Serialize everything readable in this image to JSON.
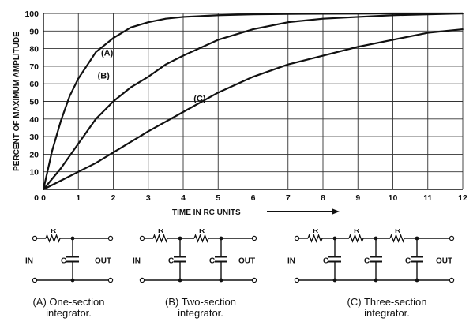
{
  "chart_data": {
    "type": "line",
    "xlabel": "TIME IN RC UNITS",
    "ylabel": "PERCENT OF MAXIMUM AMPLITUDE",
    "xlim": [
      0,
      12
    ],
    "ylim": [
      0,
      100
    ],
    "x_ticks": [
      "0",
      "1",
      "2",
      "3",
      "4",
      "5",
      "6",
      "7",
      "8",
      "9",
      "10",
      "11",
      "12"
    ],
    "y_ticks": [
      "10",
      "20",
      "30",
      "40",
      "50",
      "60",
      "70",
      "80",
      "90",
      "100"
    ],
    "grid": true,
    "series": [
      {
        "name": "(A)",
        "x": [
          0,
          0.25,
          0.5,
          0.75,
          1,
          1.5,
          2,
          2.5,
          3,
          3.5,
          4,
          5,
          6,
          7,
          8,
          9,
          10,
          11,
          12
        ],
        "y": [
          0,
          22,
          39,
          53,
          63,
          78,
          86,
          92,
          95,
          97,
          98,
          99,
          99.5,
          99.7,
          99.8,
          99.9,
          100,
          100,
          100
        ]
      },
      {
        "name": "(B)",
        "x": [
          0,
          0.5,
          1,
          1.5,
          2,
          2.5,
          3,
          3.5,
          4,
          5,
          6,
          7,
          8,
          9,
          10,
          11,
          12
        ],
        "y": [
          0,
          12,
          26,
          40,
          50,
          58,
          64,
          71,
          76,
          85,
          91,
          95,
          97,
          98,
          99,
          99.5,
          100
        ]
      },
      {
        "name": "(C)",
        "x": [
          0,
          0.5,
          1,
          1.5,
          2,
          3,
          4,
          5,
          6,
          7,
          8,
          9,
          10,
          11,
          12
        ],
        "y": [
          0,
          5,
          10,
          15,
          21,
          33,
          44,
          55,
          64,
          71,
          76,
          81,
          85,
          89,
          91
        ]
      }
    ]
  },
  "diagrams": {
    "a": {
      "r_labels": [
        "R"
      ],
      "c_labels": [
        "C"
      ],
      "in_label": "IN",
      "out_label": "OUT"
    },
    "b": {
      "r_labels": [
        "R",
        "R"
      ],
      "c_labels": [
        "C",
        "C"
      ],
      "in_label": "IN",
      "out_label": "OUT"
    },
    "c": {
      "r_labels": [
        "R",
        "R",
        "R"
      ],
      "c_labels": [
        "C",
        "C",
        "C"
      ],
      "in_label": "IN",
      "out_label": "OUT"
    }
  },
  "captions": {
    "a": {
      "line1": "(A)  One-section",
      "line2": "integrator."
    },
    "b": {
      "line1": "(B)  Two-section",
      "line2": "integrator."
    },
    "c": {
      "line1": "(C)  Three-section",
      "line2": "integrator."
    }
  },
  "colors": {
    "ink": "#111111",
    "grid": "#333333",
    "background": "#ffffff"
  }
}
